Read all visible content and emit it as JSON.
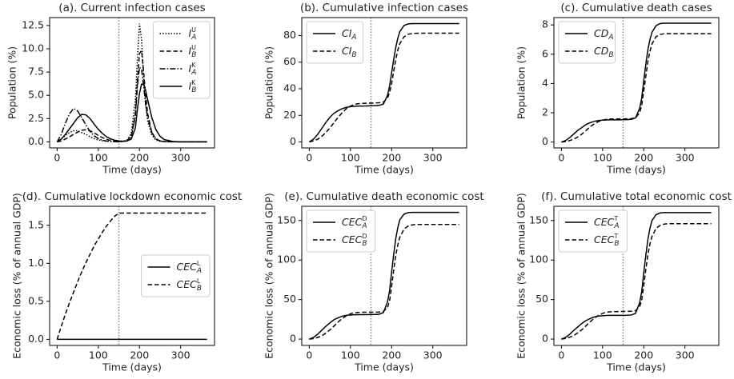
{
  "chart_data": [
    {
      "type": "line",
      "title": "(a). Current infection cases",
      "xlabel": "Time (days)",
      "ylabel": "Population (%)",
      "x": [
        0,
        10,
        20,
        30,
        40,
        50,
        60,
        70,
        80,
        90,
        100,
        110,
        120,
        130,
        140,
        150,
        160,
        170,
        180,
        190,
        195,
        200,
        205,
        210,
        215,
        220,
        230,
        240,
        250,
        260,
        280,
        300,
        330,
        364
      ],
      "xlim": [
        -18.2,
        382.2
      ],
      "ylim": [
        -0.65,
        13.35
      ],
      "xticks": [
        0,
        100,
        200,
        300
      ],
      "yticks": [
        {
          "value": 0,
          "label": "0.0"
        },
        2.5,
        {
          "value": 5,
          "label": "5.0"
        },
        7.5,
        {
          "value": 10,
          "label": "10.0"
        },
        12.5
      ],
      "vline": 150,
      "legend": "upper right",
      "series": [
        {
          "name": "I_A^U",
          "color": "#000000",
          "linestyle": "dotted",
          "values": [
            0,
            0.3,
            0.7,
            1.0,
            1.2,
            1.2,
            1.0,
            0.8,
            0.55,
            0.35,
            0.2,
            0.12,
            0.07,
            0.04,
            0.02,
            0.01,
            0.05,
            0.2,
            0.9,
            4.5,
            9.0,
            12.7,
            11.0,
            7.0,
            4.0,
            2.2,
            0.7,
            0.2,
            0.06,
            0.02,
            0,
            0,
            0,
            0
          ]
        },
        {
          "name": "I_B^U",
          "color": "#000000",
          "linestyle": "dashed",
          "values": [
            0,
            0.1,
            0.3,
            0.55,
            0.8,
            1.05,
            1.25,
            1.3,
            1.2,
            0.95,
            0.7,
            0.45,
            0.28,
            0.15,
            0.08,
            0.04,
            0.06,
            0.15,
            0.6,
            3.0,
            6.5,
            9.5,
            9.8,
            7.6,
            5.0,
            3.0,
            1.0,
            0.3,
            0.1,
            0.03,
            0,
            0,
            0,
            0
          ]
        },
        {
          "name": "I_A^K",
          "color": "#000000",
          "linestyle": "dashdot",
          "values": [
            0,
            0.8,
            2.0,
            3.0,
            3.6,
            3.3,
            2.6,
            1.8,
            1.1,
            0.65,
            0.35,
            0.18,
            0.09,
            0.05,
            0.02,
            0.01,
            0.03,
            0.1,
            0.5,
            2.8,
            6.0,
            8.0,
            7.8,
            6.0,
            4.0,
            2.6,
            1.0,
            0.35,
            0.1,
            0.03,
            0,
            0,
            0,
            0
          ]
        },
        {
          "name": "I_B^K",
          "color": "#000000",
          "linestyle": "solid",
          "values": [
            0,
            0.3,
            0.8,
            1.4,
            2.0,
            2.6,
            2.95,
            2.9,
            2.5,
            1.9,
            1.35,
            0.9,
            0.55,
            0.32,
            0.18,
            0.1,
            0.07,
            0.1,
            0.3,
            1.5,
            3.5,
            5.2,
            6.2,
            6.2,
            5.5,
            4.5,
            2.6,
            1.3,
            0.6,
            0.25,
            0.05,
            0.01,
            0,
            0
          ]
        }
      ]
    },
    {
      "type": "line",
      "title": "(b). Cumulative infection cases",
      "xlabel": "Time (days)",
      "ylabel": "Population (%)",
      "x": [
        0,
        10,
        20,
        30,
        40,
        50,
        60,
        70,
        80,
        90,
        100,
        110,
        120,
        130,
        140,
        150,
        160,
        170,
        180,
        190,
        195,
        200,
        205,
        210,
        215,
        220,
        230,
        240,
        250,
        260,
        280,
        300,
        330,
        364
      ],
      "xlim": [
        -18.2,
        382.2
      ],
      "ylim": [
        -4.5,
        93.5
      ],
      "xticks": [
        0,
        100,
        200,
        300
      ],
      "yticks": [
        0,
        20,
        40,
        60,
        80
      ],
      "vline": 150,
      "legend": "upper left",
      "series": [
        {
          "name": "CI_A",
          "color": "#000000",
          "linestyle": "solid",
          "values": [
            0,
            2,
            5.5,
            10,
            14.5,
            18.5,
            21.5,
            23.5,
            25,
            26,
            26.5,
            26.8,
            27,
            27,
            27.1,
            27.2,
            27.3,
            27.5,
            28.5,
            35,
            42,
            52,
            62,
            71,
            78,
            83,
            87.5,
            88.8,
            89,
            89,
            89,
            89,
            89,
            89
          ]
        },
        {
          "name": "CI_B",
          "color": "#000000",
          "linestyle": "dashed",
          "values": [
            0,
            0.8,
            2,
            4,
            7,
            10.5,
            14.5,
            18.5,
            22,
            25,
            27,
            28.2,
            28.8,
            29,
            29.1,
            29.2,
            29.3,
            29.5,
            30,
            33,
            37,
            44,
            53,
            62,
            69,
            74,
            79,
            81,
            81.5,
            81.7,
            81.8,
            81.8,
            81.8,
            81.8
          ]
        }
      ]
    },
    {
      "type": "line",
      "title": "(c). Cumulative death cases",
      "xlabel": "Time (days)",
      "ylabel": "Population (%)",
      "x": [
        0,
        10,
        20,
        30,
        40,
        50,
        60,
        70,
        80,
        90,
        100,
        110,
        120,
        130,
        140,
        150,
        160,
        170,
        180,
        190,
        195,
        200,
        205,
        210,
        215,
        220,
        230,
        240,
        250,
        260,
        280,
        300,
        330,
        364
      ],
      "xlim": [
        -18.2,
        382.2
      ],
      "ylim": [
        -0.4,
        8.5
      ],
      "xticks": [
        0,
        100,
        200,
        300
      ],
      "yticks": [
        0,
        2,
        4,
        6,
        8
      ],
      "vline": 150,
      "legend": "upper left",
      "series": [
        {
          "name": "CD_A",
          "color": "#000000",
          "linestyle": "solid",
          "values": [
            0,
            0.1,
            0.3,
            0.55,
            0.8,
            1.0,
            1.2,
            1.33,
            1.42,
            1.47,
            1.5,
            1.51,
            1.52,
            1.52,
            1.52,
            1.53,
            1.53,
            1.55,
            1.65,
            2.3,
            3.0,
            4.2,
            5.3,
            6.3,
            7.0,
            7.5,
            7.95,
            8.1,
            8.12,
            8.12,
            8.12,
            8.12,
            8.12,
            8.12
          ]
        },
        {
          "name": "CD_B",
          "color": "#000000",
          "linestyle": "dashed",
          "values": [
            0,
            0.03,
            0.1,
            0.2,
            0.35,
            0.55,
            0.8,
            1.05,
            1.25,
            1.4,
            1.5,
            1.55,
            1.57,
            1.58,
            1.58,
            1.58,
            1.59,
            1.6,
            1.65,
            2.0,
            2.5,
            3.5,
            4.5,
            5.5,
            6.2,
            6.7,
            7.2,
            7.35,
            7.4,
            7.4,
            7.4,
            7.4,
            7.4,
            7.4
          ]
        }
      ]
    },
    {
      "type": "line",
      "title": "(d). Cumulative lockdown economic cost",
      "xlabel": "Time (days)",
      "ylabel": "Economic loss (% of annual GDP)",
      "x": [
        0,
        10,
        20,
        30,
        40,
        50,
        60,
        70,
        80,
        90,
        100,
        110,
        120,
        130,
        140,
        150,
        160,
        170,
        180,
        190,
        195,
        200,
        205,
        210,
        215,
        220,
        230,
        240,
        250,
        260,
        280,
        300,
        330,
        364
      ],
      "xlim": [
        -18.2,
        382.2
      ],
      "ylim": [
        -0.08,
        1.75
      ],
      "xticks": [
        0,
        100,
        200,
        300
      ],
      "yticks": [
        {
          "value": 0,
          "label": "0.0"
        },
        0.5,
        {
          "value": 1,
          "label": "1.0"
        },
        1.5
      ],
      "vline": 150,
      "legend": "center right",
      "series": [
        {
          "name": "CEC_A^L",
          "color": "#000000",
          "linestyle": "solid",
          "values": [
            0,
            0,
            0,
            0,
            0,
            0,
            0,
            0,
            0,
            0,
            0,
            0,
            0,
            0,
            0,
            0,
            0,
            0,
            0,
            0,
            0,
            0,
            0,
            0,
            0,
            0,
            0,
            0,
            0,
            0,
            0,
            0,
            0,
            0
          ]
        },
        {
          "name": "CEC_B^L",
          "color": "#000000",
          "linestyle": "dashed",
          "values": [
            0,
            0.17,
            0.33,
            0.48,
            0.62,
            0.76,
            0.89,
            1.01,
            1.12,
            1.23,
            1.32,
            1.41,
            1.49,
            1.56,
            1.62,
            1.66,
            1.66,
            1.66,
            1.66,
            1.66,
            1.66,
            1.66,
            1.66,
            1.66,
            1.66,
            1.66,
            1.66,
            1.66,
            1.66,
            1.66,
            1.66,
            1.66,
            1.66,
            1.66
          ]
        }
      ]
    },
    {
      "type": "line",
      "title": "(e). Cumulative death economic cost",
      "xlabel": "Time (days)",
      "ylabel": "Economic loss (% of annual GDP)",
      "x": [
        0,
        10,
        20,
        30,
        40,
        50,
        60,
        70,
        80,
        90,
        100,
        110,
        120,
        130,
        140,
        150,
        160,
        170,
        180,
        190,
        195,
        200,
        205,
        210,
        215,
        220,
        230,
        240,
        250,
        260,
        280,
        300,
        330,
        364
      ],
      "xlim": [
        -18.2,
        382.2
      ],
      "ylim": [
        -8,
        168
      ],
      "xticks": [
        0,
        100,
        200,
        300
      ],
      "yticks": [
        0,
        50,
        100,
        150
      ],
      "vline": 150,
      "legend": "upper left",
      "series": [
        {
          "name": "CEC_A^D",
          "color": "#000000",
          "linestyle": "solid",
          "values": [
            0,
            2,
            6,
            11,
            16,
            20.5,
            24.5,
            27,
            29,
            30,
            30.5,
            30.8,
            31,
            31,
            31,
            31.1,
            31.2,
            31.5,
            33.5,
            47,
            61,
            85,
            107,
            127,
            141,
            151,
            158,
            160,
            160.3,
            160.3,
            160.3,
            160.3,
            160.3,
            160.3
          ]
        },
        {
          "name": "CEC_B^D",
          "color": "#000000",
          "linestyle": "dashed",
          "values": [
            0,
            0.6,
            2,
            4,
            7.5,
            11.5,
            16.5,
            21.5,
            26,
            29.5,
            32,
            33.3,
            33.8,
            34,
            34,
            34,
            34.1,
            34.2,
            35,
            40,
            48,
            67,
            87,
            106,
            119,
            129,
            139,
            143,
            144.5,
            145,
            145,
            145,
            145,
            145
          ]
        }
      ]
    },
    {
      "type": "line",
      "title": "(f). Cumulative total economic cost",
      "xlabel": "Time (days)",
      "ylabel": "Economic loss (% of annual GDP)",
      "x": [
        0,
        10,
        20,
        30,
        40,
        50,
        60,
        70,
        80,
        90,
        100,
        110,
        120,
        130,
        140,
        150,
        160,
        170,
        180,
        190,
        195,
        200,
        205,
        210,
        215,
        220,
        230,
        240,
        250,
        260,
        280,
        300,
        330,
        364
      ],
      "xlim": [
        -18.2,
        382.2
      ],
      "ylim": [
        -8,
        168
      ],
      "xticks": [
        0,
        100,
        200,
        300
      ],
      "yticks": [
        0,
        50,
        100,
        150
      ],
      "vline": 150,
      "legend": "upper left",
      "series": [
        {
          "name": "CEC_A^T",
          "color": "#000000",
          "linestyle": "solid",
          "values": [
            0,
            2,
            6,
            11,
            15.5,
            20,
            23.5,
            26,
            28,
            29,
            29.6,
            29.9,
            30,
            30,
            30,
            30.1,
            30.2,
            30.5,
            32.5,
            46,
            60,
            84,
            106,
            126,
            140,
            150,
            157.5,
            159.6,
            160,
            160,
            160,
            160,
            160,
            160
          ]
        },
        {
          "name": "CEC_B^T",
          "color": "#000000",
          "linestyle": "dashed",
          "values": [
            0,
            0.8,
            2.3,
            4.5,
            8,
            12,
            17,
            22,
            26.5,
            30,
            32.5,
            34,
            34.6,
            34.8,
            34.9,
            35,
            35.1,
            35.3,
            36,
            41,
            49,
            68,
            88,
            107,
            120,
            130,
            140,
            144,
            145.5,
            146,
            146,
            146,
            146,
            146
          ]
        }
      ]
    }
  ]
}
